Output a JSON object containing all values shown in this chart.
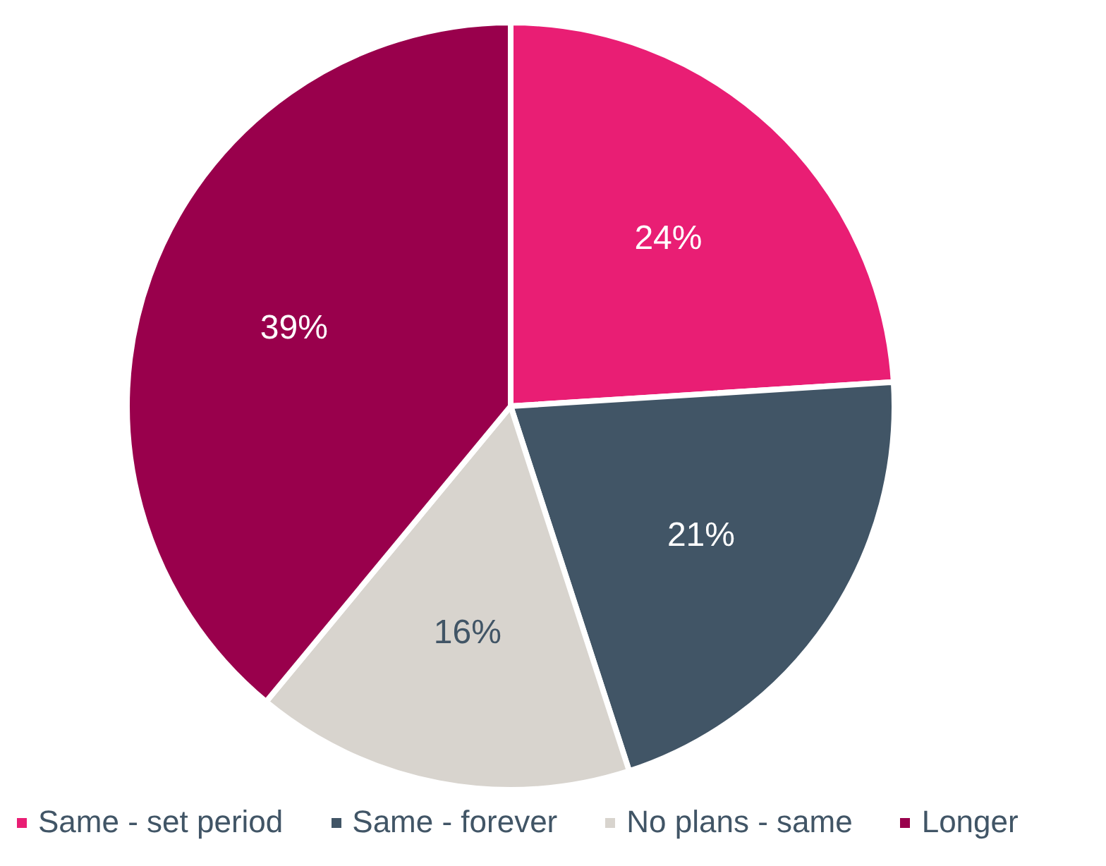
{
  "chart_data": {
    "type": "pie",
    "categories": [
      "Same - set period",
      "Same - forever",
      "No plans - same",
      "Longer"
    ],
    "values": [
      24,
      21,
      16,
      39
    ],
    "colors": [
      "#e91e74",
      "#415566",
      "#d8d4ce",
      "#99004c"
    ],
    "value_labels": [
      "24%",
      "21%",
      "16%",
      "39%"
    ],
    "legend": "bottom"
  }
}
